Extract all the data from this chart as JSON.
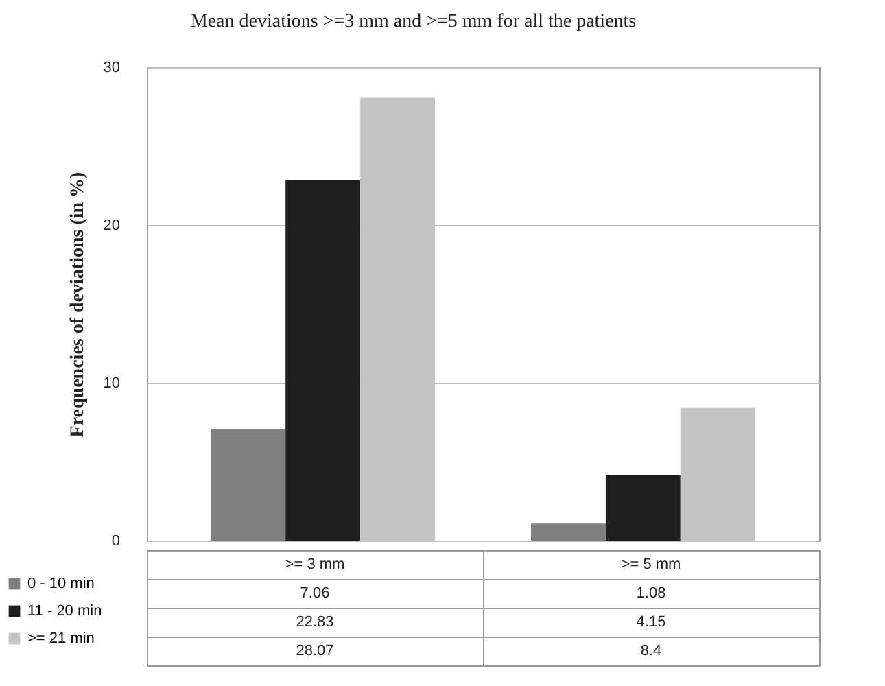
{
  "chart_data": {
    "type": "bar",
    "title": "Mean deviations >=3 mm and >=5 mm for all the patients",
    "ylabel": "Frequencies of deviations (in %)",
    "categories": [
      ">= 3 mm",
      ">= 5 mm"
    ],
    "series": [
      {
        "name": "0 - 10 min",
        "color": "#7f7f7f",
        "values": [
          7.06,
          1.08
        ]
      },
      {
        "name": "11 - 20 min",
        "color": "#1e1e1e",
        "values": [
          22.83,
          4.15
        ]
      },
      {
        "name": ">= 21 min",
        "color": "#c4c5c7",
        "values": [
          28.07,
          8.4
        ]
      }
    ],
    "ylim": [
      0,
      30
    ],
    "yticks": [
      0,
      10,
      20,
      30
    ],
    "grid": "y",
    "legend": "bottom left",
    "data_labels": true
  }
}
